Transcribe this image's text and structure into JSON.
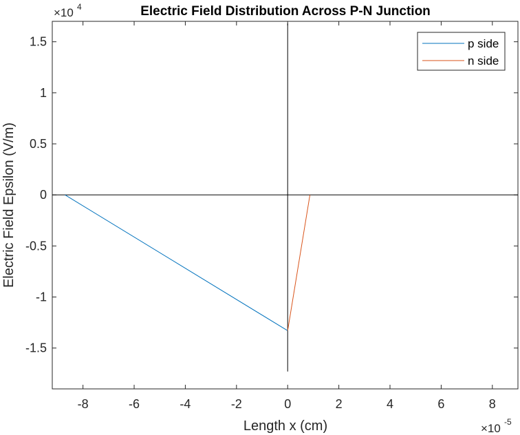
{
  "chart_data": {
    "type": "line",
    "title": "Electric Field Distribution Across P-N Junction",
    "xlabel": "Length x (cm)",
    "ylabel": "Electric Field Epsilon (V/m)",
    "x_multiplier": {
      "base": "×10",
      "exponent": "-5"
    },
    "y_multiplier": {
      "base": "×10",
      "exponent": "4"
    },
    "xlim": [
      -9.2e-05,
      9e-05
    ],
    "ylim": [
      -19000,
      17000
    ],
    "x_ticks": [
      -8e-05,
      -6e-05,
      -4e-05,
      -2e-05,
      0,
      2e-05,
      4e-05,
      6e-05,
      8e-05
    ],
    "x_tick_labels": [
      "-8",
      "-6",
      "-4",
      "-2",
      "0",
      "2",
      "4",
      "6",
      "8"
    ],
    "y_ticks": [
      -15000,
      -10000,
      -5000,
      0,
      5000,
      10000,
      15000
    ],
    "y_tick_labels": [
      "-1.5",
      "-1",
      "-0.5",
      "0",
      "0.5",
      "1",
      "1.5"
    ],
    "grid": false,
    "legend_position": "top-right",
    "reference_lines": [
      {
        "orientation": "horizontal",
        "value": 0,
        "color": "#000000"
      },
      {
        "orientation": "vertical",
        "value": 0,
        "from": -17300,
        "to": 16800,
        "color": "#000000"
      }
    ],
    "series": [
      {
        "name": "p side",
        "color": "#0072BD",
        "x": [
          -8.7e-05,
          0
        ],
        "y": [
          0,
          -13300
        ]
      },
      {
        "name": "n side",
        "color": "#D95319",
        "x": [
          0,
          8.7e-06
        ],
        "y": [
          -13300,
          0
        ]
      }
    ]
  }
}
